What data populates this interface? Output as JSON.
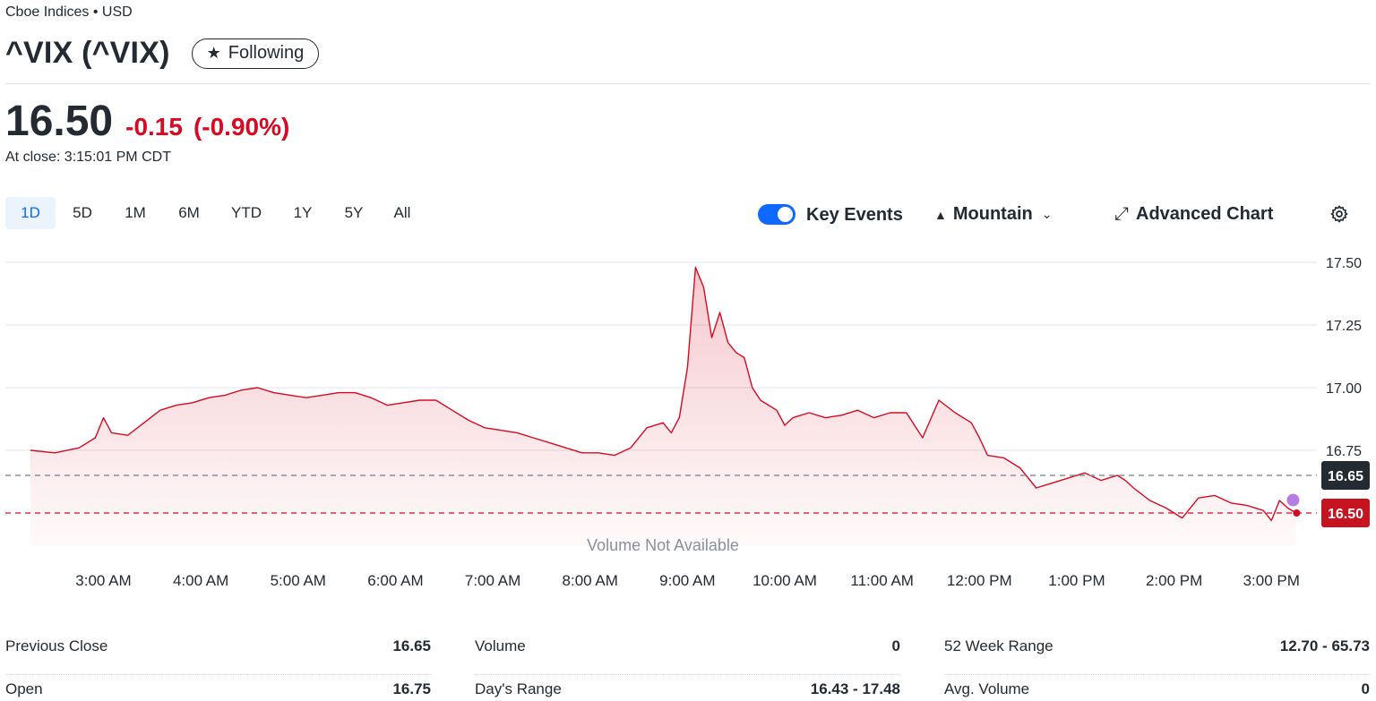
{
  "header": {
    "exchange": "Cboe Indices • USD",
    "title": "^VIX (^VIX)",
    "follow_label": "Following",
    "follow_icon": "star-icon"
  },
  "quote": {
    "price": "16.50",
    "change": "-0.15",
    "change_pct": "(-0.90%)",
    "close_time": "At close: 3:15:01 PM CDT"
  },
  "ranges": [
    "1D",
    "5D",
    "1M",
    "6M",
    "YTD",
    "1Y",
    "5Y",
    "All"
  ],
  "active_range": "1D",
  "toolbar": {
    "key_events_label": "Key Events",
    "key_events_on": true,
    "chart_type_label": "Mountain",
    "chart_type_icon": "mountain-icon",
    "advanced_label": "Advanced Chart",
    "advanced_icon": "expand-icon",
    "settings_icon": "gear-icon"
  },
  "colors": {
    "down": "#d60a22",
    "accent": "#0f69ff",
    "prev_close_tag": "#232a31",
    "key_event_dot": "#b57ee0"
  },
  "chart_data": {
    "type": "area",
    "xlabel": "",
    "ylabel": "",
    "y_ticks": [
      "17.50",
      "17.25",
      "17.00",
      "16.75"
    ],
    "ylim": [
      16.43,
      17.5
    ],
    "x_ticks": [
      "3:00 AM",
      "4:00 AM",
      "5:00 AM",
      "6:00 AM",
      "7:00 AM",
      "8:00 AM",
      "9:00 AM",
      "10:00 AM",
      "11:00 AM",
      "12:00 PM",
      "1:00 PM",
      "2:00 PM",
      "3:00 PM"
    ],
    "x_range": [
      "2:15 AM",
      "3:15 PM"
    ],
    "volume_note": "Volume Not Available",
    "previous_close": 16.65,
    "previous_close_label": "16.65",
    "last_price": 16.5,
    "last_price_label": "16.50",
    "grid": true,
    "series": [
      {
        "x": [
          "2:15",
          "2:30",
          "2:45",
          "2:55",
          "3:00",
          "3:05",
          "3:15",
          "3:25",
          "3:35",
          "3:45",
          "3:55",
          "4:05",
          "4:15",
          "4:25",
          "4:35",
          "4:45",
          "4:55",
          "5:05",
          "5:15",
          "5:25",
          "5:35",
          "5:45",
          "5:55",
          "6:05",
          "6:15",
          "6:25",
          "6:35",
          "6:45",
          "6:55",
          "7:05",
          "7:15",
          "7:25",
          "7:35",
          "7:45",
          "7:55",
          "8:05",
          "8:15",
          "8:25",
          "8:35",
          "8:45",
          "8:50",
          "8:55",
          "9:00",
          "9:05",
          "9:10",
          "9:15",
          "9:20",
          "9:25",
          "9:30",
          "9:35",
          "9:40",
          "9:45",
          "9:50",
          "9:55",
          "10:00",
          "10:05",
          "10:15",
          "10:25",
          "10:35",
          "10:45",
          "10:55",
          "11:05",
          "11:15",
          "11:25",
          "11:35",
          "11:45",
          "11:55",
          "12:00",
          "12:05",
          "12:15",
          "12:25",
          "12:35",
          "12:45",
          "12:55",
          "13:05",
          "13:15",
          "13:25",
          "13:30",
          "13:35",
          "13:45",
          "13:55",
          "14:00",
          "14:05",
          "14:15",
          "14:25",
          "14:35",
          "14:45",
          "14:55",
          "15:00",
          "15:05",
          "15:10",
          "15:15"
        ],
        "y": [
          16.75,
          16.74,
          16.76,
          16.8,
          16.88,
          16.82,
          16.81,
          16.86,
          16.91,
          16.93,
          16.94,
          16.96,
          16.97,
          16.99,
          17.0,
          16.98,
          16.97,
          16.96,
          16.97,
          16.98,
          16.98,
          16.96,
          16.93,
          16.94,
          16.95,
          16.95,
          16.91,
          16.87,
          16.84,
          16.83,
          16.82,
          16.8,
          16.78,
          16.76,
          16.74,
          16.74,
          16.73,
          16.76,
          16.84,
          16.86,
          16.82,
          16.88,
          17.08,
          17.48,
          17.4,
          17.2,
          17.3,
          17.18,
          17.14,
          17.12,
          17.0,
          16.95,
          16.93,
          16.91,
          16.85,
          16.88,
          16.9,
          16.88,
          16.89,
          16.91,
          16.88,
          16.9,
          16.9,
          16.8,
          16.95,
          16.9,
          16.86,
          16.8,
          16.73,
          16.72,
          16.68,
          16.6,
          16.62,
          16.64,
          16.66,
          16.63,
          16.65,
          16.63,
          16.6,
          16.55,
          16.52,
          16.5,
          16.48,
          16.56,
          16.57,
          16.54,
          16.53,
          16.51,
          16.47,
          16.55,
          16.52,
          16.5
        ]
      }
    ],
    "key_event": {
      "time": "3:15 PM",
      "value": 16.53
    }
  },
  "stats": [
    [
      {
        "label": "Previous Close",
        "value": "16.65"
      },
      {
        "label": "Open",
        "value": "16.75"
      }
    ],
    [
      {
        "label": "Volume",
        "value": "0"
      },
      {
        "label": "Day's Range",
        "value": "16.43 - 17.48"
      }
    ],
    [
      {
        "label": "52 Week Range",
        "value": "12.70 - 65.73"
      },
      {
        "label": "Avg. Volume",
        "value": "0"
      }
    ]
  ]
}
